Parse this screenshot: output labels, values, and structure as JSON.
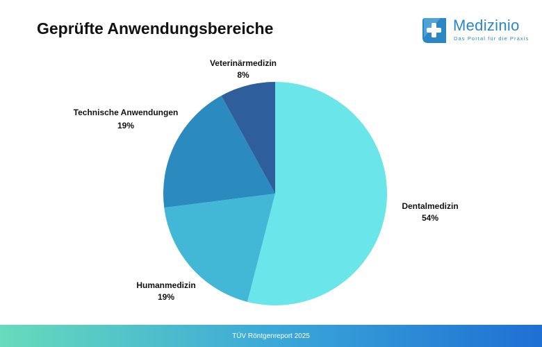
{
  "header": {
    "title": "Geprüfte Anwendungsbereiche"
  },
  "logo": {
    "name": "Medizinio",
    "tagline": "Das Portal für die Praxis",
    "color": "#2a87c4"
  },
  "footer": {
    "source": "TÜV Röntgenreport 2025"
  },
  "chart_data": {
    "type": "pie",
    "title": "Geprüfte Anwendungsbereiche",
    "unit": "%",
    "start": "12 o'clock, clockwise",
    "slices": [
      {
        "label": "Dentalmedizin",
        "value": 54,
        "display": "54%",
        "color": "#6ae5ea"
      },
      {
        "label": "Humanmedizin",
        "value": 19,
        "display": "19%",
        "color": "#42b7d6"
      },
      {
        "label": "Technische Anwendungen",
        "value": 19,
        "display": "19%",
        "color": "#2b8bbe"
      },
      {
        "label": "Veterinärmedizin",
        "value": 8,
        "display": "8%",
        "color": "#2e5f9c"
      }
    ]
  }
}
